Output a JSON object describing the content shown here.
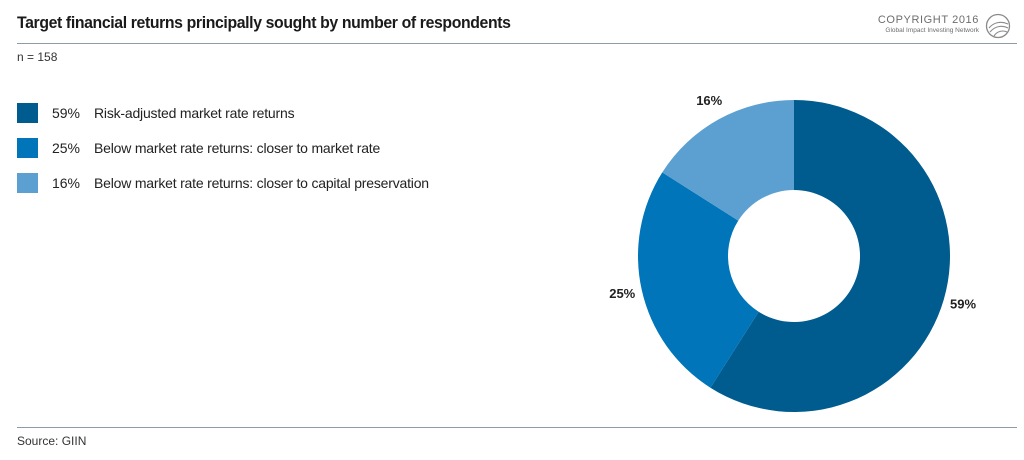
{
  "header": {
    "title": "Target financial returns principally sought by number of respondents",
    "copyright_line1": "COPYRIGHT 2016",
    "copyright_line2": "Global Impact Investing Network"
  },
  "sample_size": "n = 158",
  "legend": [
    {
      "percent": "59%",
      "label": "Risk-adjusted market rate returns",
      "color": "#005b8f"
    },
    {
      "percent": "25%",
      "label": "Below market rate returns: closer to market rate",
      "color": "#0075b9"
    },
    {
      "percent": "16%",
      "label": "Below market rate returns: closer to capital preservation",
      "color": "#5ba0d0"
    }
  ],
  "footer": {
    "source": "Source: GIIN"
  },
  "chart_data": {
    "type": "pie",
    "donut": true,
    "categories": [
      "Risk-adjusted market rate returns",
      "Below market rate returns: closer to market rate",
      "Below market rate returns: closer to capital preservation"
    ],
    "values": [
      59,
      25,
      16
    ],
    "data_labels": [
      "59%",
      "25%",
      "16%"
    ],
    "colors": [
      "#005b8f",
      "#0075b9",
      "#5ba0d0"
    ],
    "title": "Target financial returns principally sought by number of respondents",
    "legend_position": "left"
  }
}
